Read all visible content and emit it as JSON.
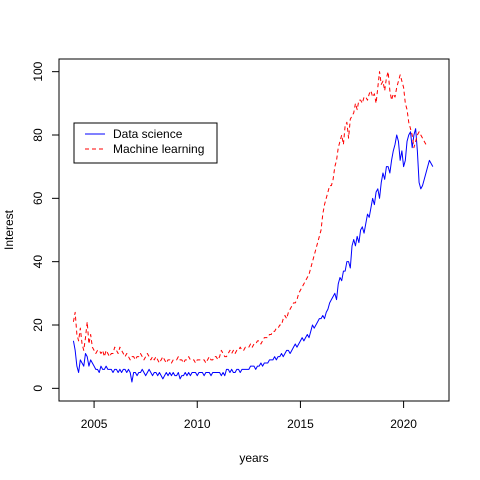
{
  "chart_data": {
    "type": "line",
    "title": "",
    "xlabel": "years",
    "ylabel": "Interest",
    "xlim": [
      2003.3,
      2022.2
    ],
    "ylim": [
      -4,
      104
    ],
    "x_ticks": [
      2005,
      2010,
      2015,
      2020
    ],
    "y_ticks": [
      0,
      20,
      40,
      60,
      80,
      100
    ],
    "x_tick_labels": [
      "2005",
      "2010",
      "2015",
      "2020"
    ],
    "y_tick_labels": [
      "0",
      "20",
      "40",
      "60",
      "80",
      "100"
    ],
    "grid": false,
    "legend_position": "top-left",
    "x_start": 2004.0,
    "x_step": 0.0833333,
    "series": [
      {
        "name": "Data science",
        "color": "#0000ff",
        "dash": "solid",
        "values": [
          15,
          12,
          7,
          5,
          9,
          8,
          7,
          11,
          10,
          7,
          9,
          8,
          7,
          6,
          6,
          5,
          7,
          6,
          6,
          7,
          6,
          6,
          6,
          5,
          6,
          6,
          5,
          6,
          5,
          6,
          6,
          5,
          6,
          5,
          2,
          5,
          5,
          4,
          5,
          5,
          6,
          5,
          4,
          5,
          6,
          5,
          4,
          5,
          5,
          4,
          5,
          4,
          3,
          4,
          5,
          4,
          5,
          4,
          5,
          4,
          4,
          5,
          3,
          4,
          4,
          5,
          4,
          5,
          4,
          5,
          5,
          5,
          4,
          5,
          5,
          5,
          4,
          5,
          5,
          5,
          4,
          5,
          5,
          5,
          5,
          5,
          4,
          5,
          4,
          6,
          6,
          5,
          6,
          5,
          5,
          6,
          6,
          5,
          6,
          6,
          6,
          6,
          6,
          7,
          7,
          7,
          6,
          7,
          7,
          8,
          7,
          8,
          8,
          8,
          9,
          9,
          9,
          10,
          9,
          10,
          10,
          11,
          10,
          11,
          12,
          12,
          11,
          12,
          13,
          14,
          13,
          14,
          15,
          16,
          15,
          16,
          17,
          16,
          18,
          20,
          19,
          20,
          21,
          22,
          22,
          23,
          22,
          24,
          25,
          27,
          28,
          29,
          30,
          28,
          33,
          35,
          34,
          37,
          37,
          40,
          40,
          38,
          45,
          47,
          45,
          48,
          46,
          50,
          51,
          49,
          52,
          55,
          54,
          57,
          60,
          58,
          62,
          63,
          60,
          65,
          68,
          66,
          70,
          70,
          68,
          72,
          75,
          77,
          80,
          78,
          72,
          75,
          70,
          72,
          78,
          80,
          81,
          76,
          80,
          82,
          75,
          65,
          63,
          64,
          66,
          68,
          70,
          72,
          71,
          70
        ]
      },
      {
        "name": "Machine learning",
        "color": "#ff0000",
        "dash": "dashed",
        "values": [
          21,
          24,
          17,
          15,
          19,
          14,
          12,
          16,
          21,
          14,
          17,
          13,
          12,
          11,
          12,
          12,
          11,
          12,
          10,
          12,
          11,
          10,
          11,
          11,
          13,
          12,
          11,
          13,
          12,
          11,
          10,
          11,
          10,
          9,
          10,
          10,
          9,
          10,
          10,
          11,
          10,
          9,
          10,
          11,
          10,
          9,
          10,
          9,
          10,
          9,
          8,
          9,
          10,
          9,
          8,
          9,
          9,
          8,
          9,
          9,
          9,
          10,
          9,
          9,
          8,
          9,
          9,
          10,
          9,
          9,
          9,
          8,
          9,
          9,
          9,
          9,
          9,
          8,
          9,
          10,
          9,
          9,
          10,
          10,
          9,
          10,
          12,
          11,
          10,
          10,
          11,
          12,
          11,
          12,
          11,
          12,
          12,
          13,
          12,
          12,
          13,
          13,
          13,
          14,
          13,
          14,
          14,
          15,
          15,
          14,
          15,
          16,
          16,
          16,
          17,
          17,
          18,
          18,
          19,
          19,
          20,
          20,
          22,
          23,
          22,
          24,
          25,
          26,
          27,
          27,
          28,
          30,
          31,
          32,
          33,
          34,
          35,
          36,
          38,
          40,
          42,
          44,
          46,
          48,
          50,
          55,
          58,
          60,
          62,
          64,
          64,
          66,
          70,
          72,
          76,
          78,
          80,
          77,
          83,
          84,
          79,
          85,
          86,
          87,
          90,
          88,
          91,
          91,
          90,
          92,
          92,
          91,
          93,
          94,
          92,
          93,
          90,
          95,
          100,
          96,
          97,
          94,
          98,
          100,
          94,
          91,
          93,
          92,
          95,
          97,
          99,
          97,
          95,
          90,
          88,
          84,
          82,
          80,
          76,
          78,
          80,
          81,
          80,
          79,
          78,
          77
        ]
      }
    ]
  }
}
